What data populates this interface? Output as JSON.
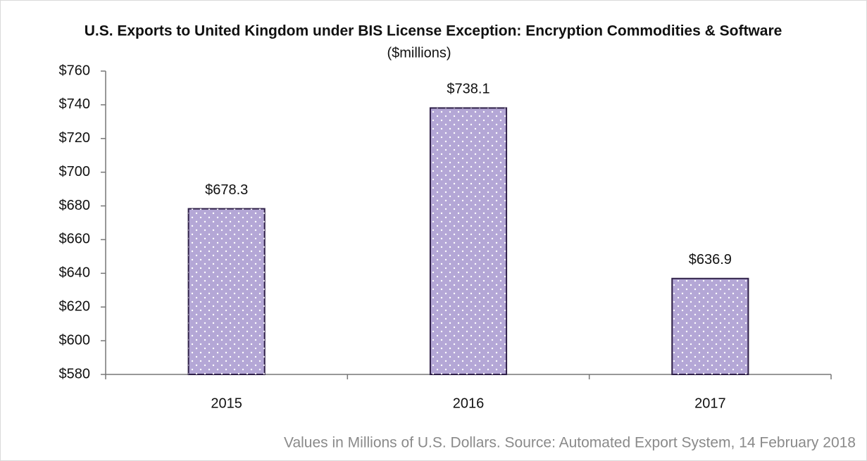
{
  "chart_data": {
    "type": "bar",
    "title": "U.S. Exports to United Kingdom under BIS License Exception: Encryption Commodities & Software",
    "subtitle": "($millions)",
    "footnote": "Values in Millions of U.S. Dollars. Source: Automated Export System, 14 February 2018",
    "categories": [
      "2015",
      "2016",
      "2017"
    ],
    "values": [
      678.3,
      738.1,
      636.9
    ],
    "value_labels": [
      "$678.3",
      "$738.1",
      "$636.9"
    ],
    "color": "#b4a7d6",
    "ylim": [
      580,
      760
    ],
    "yticks": [
      {
        "value": 580,
        "label": "$580"
      },
      {
        "value": 600,
        "label": "$600"
      },
      {
        "value": 620,
        "label": "$620"
      },
      {
        "value": 640,
        "label": "$640"
      },
      {
        "value": 660,
        "label": "$660"
      },
      {
        "value": 680,
        "label": "$680"
      },
      {
        "value": 700,
        "label": "$700"
      },
      {
        "value": 720,
        "label": "$720"
      },
      {
        "value": 740,
        "label": "$740"
      },
      {
        "value": 760,
        "label": "$760"
      }
    ],
    "grid": false
  }
}
